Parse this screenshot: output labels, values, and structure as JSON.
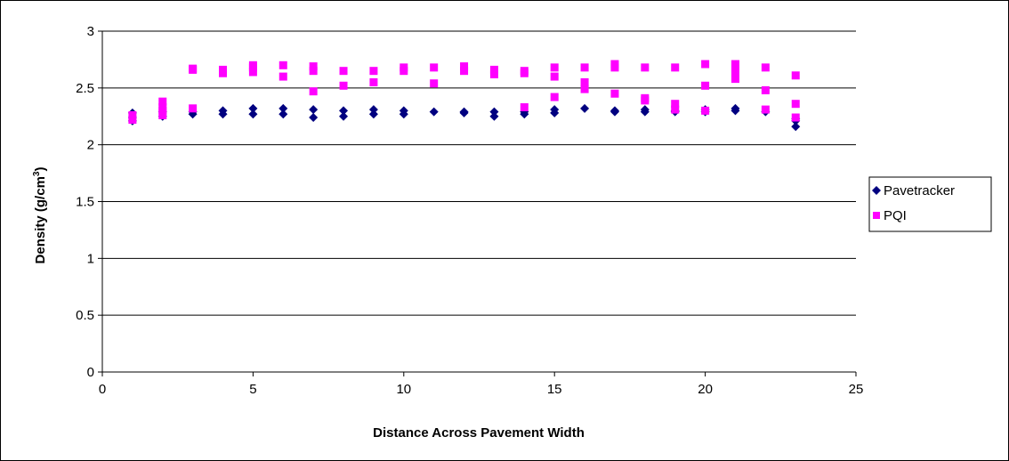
{
  "chart_data": {
    "type": "scatter",
    "xlabel": "Distance Across Pavement Width",
    "ylabel_prefix": "Density (g/cm",
    "ylabel_superscript": "3",
    "ylabel_suffix": ")",
    "xlim": [
      0,
      25
    ],
    "ylim": [
      0,
      3
    ],
    "x_ticks": [
      "0",
      "5",
      "10",
      "15",
      "20",
      "25"
    ],
    "y_ticks": [
      "0",
      "0.5",
      "1",
      "1.5",
      "2",
      "2.5",
      "3"
    ],
    "grid": "horizontal",
    "legend_position": "right",
    "series": [
      {
        "name": "Pavetracker",
        "marker": "diamond",
        "color": "#000080",
        "points": [
          [
            1,
            2.21
          ],
          [
            1,
            2.24
          ],
          [
            1,
            2.28
          ],
          [
            2,
            2.25
          ],
          [
            2,
            2.29
          ],
          [
            3,
            2.27
          ],
          [
            3,
            2.29
          ],
          [
            4,
            2.27
          ],
          [
            4,
            2.3
          ],
          [
            5,
            2.27
          ],
          [
            5,
            2.32
          ],
          [
            6,
            2.27
          ],
          [
            6,
            2.32
          ],
          [
            7,
            2.24
          ],
          [
            7,
            2.31
          ],
          [
            8,
            2.25
          ],
          [
            8,
            2.3
          ],
          [
            9,
            2.27
          ],
          [
            9,
            2.31
          ],
          [
            10,
            2.27
          ],
          [
            10,
            2.3
          ],
          [
            11,
            2.29
          ],
          [
            12,
            2.28
          ],
          [
            12,
            2.29
          ],
          [
            13,
            2.25
          ],
          [
            13,
            2.29
          ],
          [
            14,
            2.27
          ],
          [
            14,
            2.29
          ],
          [
            15,
            2.28
          ],
          [
            15,
            2.31
          ],
          [
            16,
            2.32
          ],
          [
            17,
            2.29
          ],
          [
            17,
            2.3
          ],
          [
            18,
            2.29
          ],
          [
            18,
            2.31
          ],
          [
            19,
            2.29
          ],
          [
            19,
            2.3
          ],
          [
            20,
            2.29
          ],
          [
            20,
            2.31
          ],
          [
            21,
            2.3
          ],
          [
            21,
            2.32
          ],
          [
            22,
            2.29
          ],
          [
            23,
            2.16
          ],
          [
            23,
            2.21
          ],
          [
            23,
            2.23
          ]
        ]
      },
      {
        "name": "PQI",
        "marker": "square",
        "color": "#ff00ff",
        "points": [
          [
            1,
            2.22
          ],
          [
            1,
            2.26
          ],
          [
            2,
            2.26
          ],
          [
            2,
            2.3
          ],
          [
            2,
            2.33
          ],
          [
            2,
            2.38
          ],
          [
            3,
            2.32
          ],
          [
            3,
            2.66
          ],
          [
            3,
            2.67
          ],
          [
            4,
            2.63
          ],
          [
            4,
            2.66
          ],
          [
            5,
            2.64
          ],
          [
            5,
            2.68
          ],
          [
            5,
            2.7
          ],
          [
            6,
            2.6
          ],
          [
            6,
            2.7
          ],
          [
            7,
            2.47
          ],
          [
            7,
            2.65
          ],
          [
            7,
            2.69
          ],
          [
            8,
            2.52
          ],
          [
            8,
            2.65
          ],
          [
            9,
            2.55
          ],
          [
            9,
            2.65
          ],
          [
            10,
            2.65
          ],
          [
            10,
            2.68
          ],
          [
            11,
            2.54
          ],
          [
            11,
            2.68
          ],
          [
            12,
            2.65
          ],
          [
            12,
            2.69
          ],
          [
            13,
            2.62
          ],
          [
            13,
            2.66
          ],
          [
            14,
            2.33
          ],
          [
            14,
            2.63
          ],
          [
            14,
            2.65
          ],
          [
            15,
            2.42
          ],
          [
            15,
            2.6
          ],
          [
            15,
            2.68
          ],
          [
            16,
            2.49
          ],
          [
            16,
            2.55
          ],
          [
            16,
            2.68
          ],
          [
            17,
            2.45
          ],
          [
            17,
            2.68
          ],
          [
            17,
            2.71
          ],
          [
            18,
            2.39
          ],
          [
            18,
            2.41
          ],
          [
            18,
            2.68
          ],
          [
            19,
            2.31
          ],
          [
            19,
            2.36
          ],
          [
            19,
            2.68
          ],
          [
            20,
            2.3
          ],
          [
            20,
            2.52
          ],
          [
            20,
            2.71
          ],
          [
            21,
            2.58
          ],
          [
            21,
            2.63
          ],
          [
            21,
            2.67
          ],
          [
            21,
            2.71
          ],
          [
            22,
            2.31
          ],
          [
            22,
            2.48
          ],
          [
            22,
            2.68
          ],
          [
            23,
            2.24
          ],
          [
            23,
            2.36
          ],
          [
            23,
            2.61
          ]
        ]
      }
    ]
  }
}
